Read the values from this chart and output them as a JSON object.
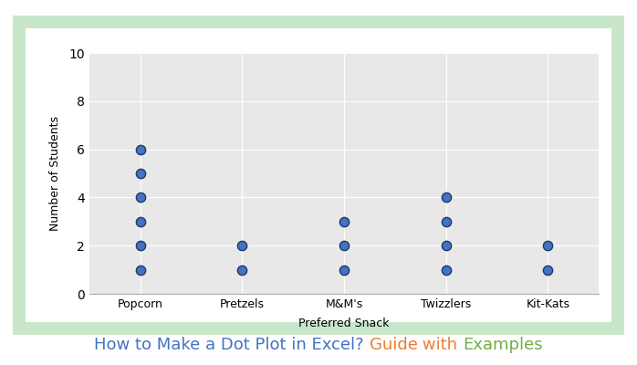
{
  "categories": [
    "Popcorn",
    "Pretzels",
    "M&M's",
    "Twizzlers",
    "Kit-Kats"
  ],
  "dot_data": {
    "Popcorn": [
      1,
      2,
      3,
      4,
      5,
      6
    ],
    "Pretzels": [
      1,
      2
    ],
    "M&M's": [
      1,
      2,
      3
    ],
    "Twizzlers": [
      1,
      2,
      3,
      4
    ],
    "Kit-Kats": [
      1,
      2
    ]
  },
  "xlabel": "Preferred Snack",
  "ylabel": "Number of Students",
  "ylim": [
    0,
    10
  ],
  "yticks": [
    0,
    2,
    4,
    6,
    8,
    10
  ],
  "dot_facecolor": "#4472C4",
  "dot_edgecolor": "#1F3864",
  "dot_size": 55,
  "background_color": "#ffffff",
  "plot_bg_color": "#E8E8E8",
  "border_color": "#C8E6C9",
  "parts": [
    [
      "How to Make a Dot Plot in Excel? ",
      "#4472C4"
    ],
    [
      "Guide",
      "#ED7D31"
    ],
    [
      " with ",
      "#ED7D31"
    ],
    [
      "Examples",
      "#70AD47"
    ]
  ],
  "title_fontsize": 13
}
